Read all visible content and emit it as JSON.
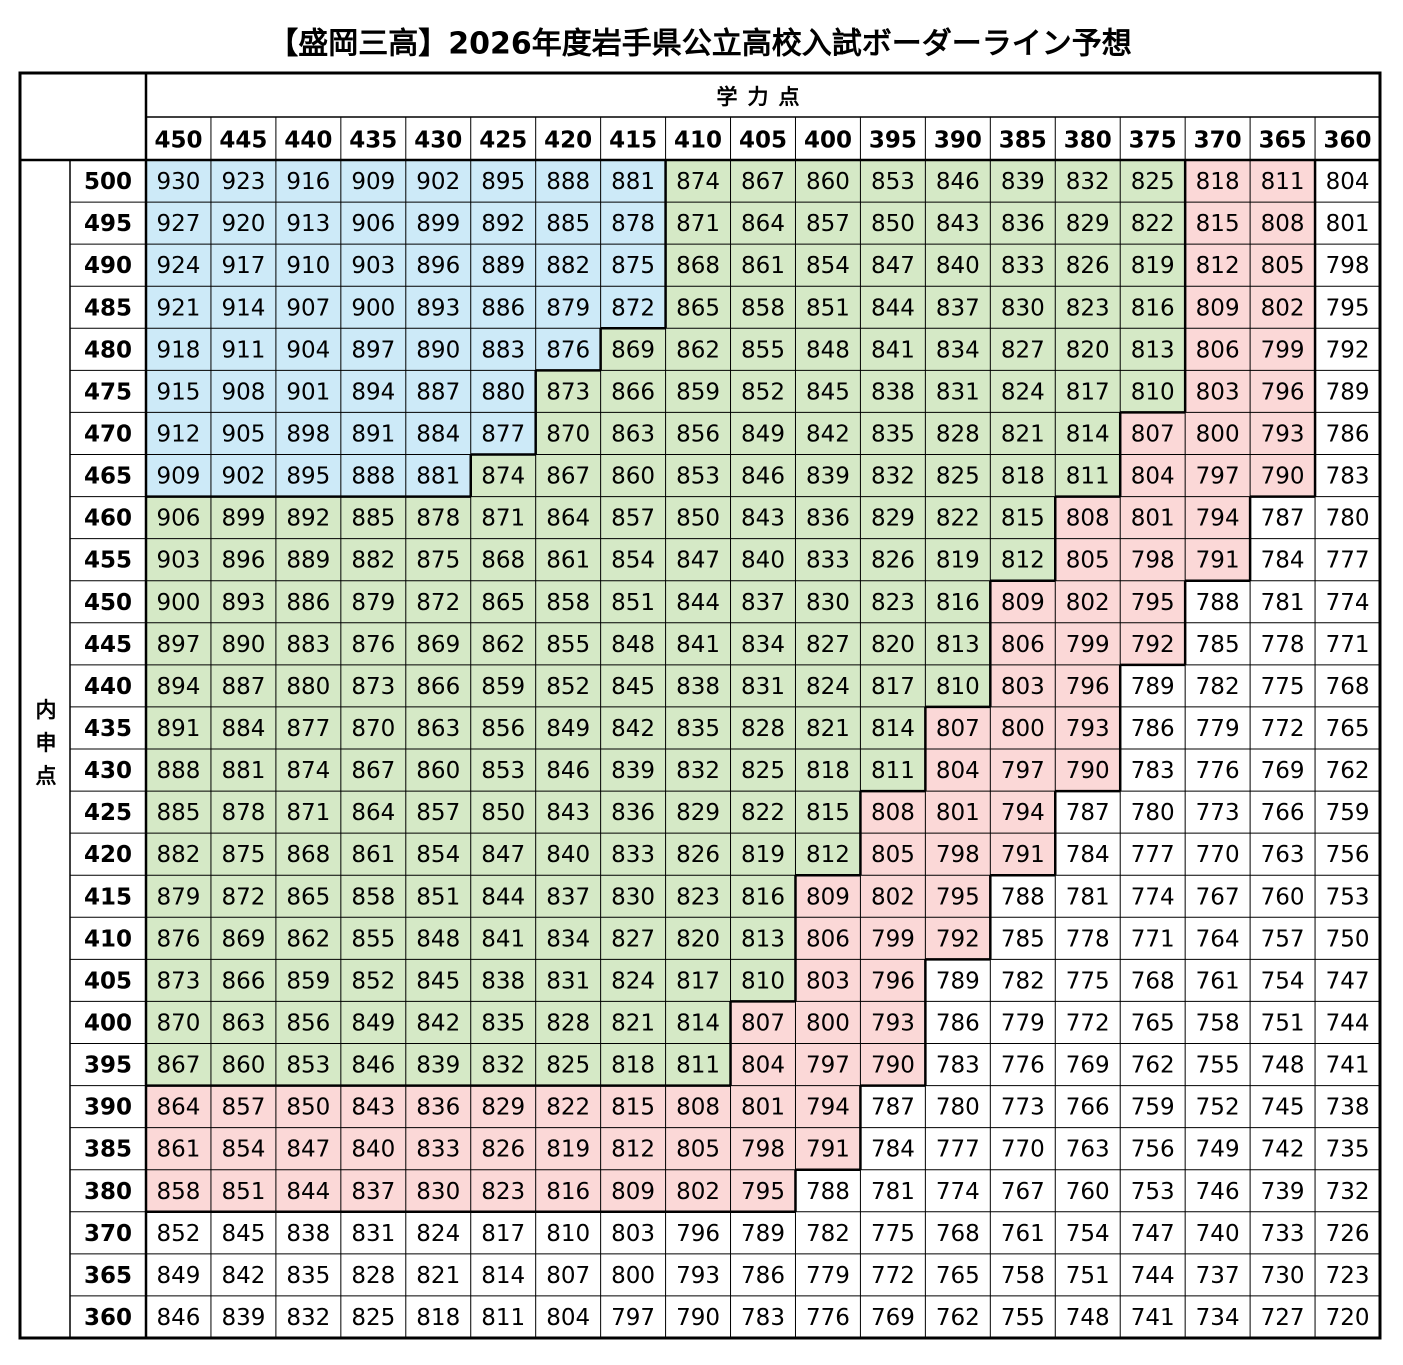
{
  "title": "【盛岡三高】2026年度岩手県公立高校入試ボーダーライン予想",
  "table": {
    "column_group_label": "学力点",
    "row_group_label": "内申点",
    "zone_colors": [
      "#cdeaf8",
      "#d5e9c6",
      "#fbd8d7"
    ],
    "columns": [
      450,
      445,
      440,
      435,
      430,
      425,
      420,
      415,
      410,
      405,
      400,
      395,
      390,
      385,
      380,
      375,
      370,
      365,
      360
    ],
    "rows": [
      {
        "label": 500,
        "zone_ends": [
          8,
          16,
          18
        ],
        "cells": [
          930,
          923,
          916,
          909,
          902,
          895,
          888,
          881,
          874,
          867,
          860,
          853,
          846,
          839,
          832,
          825,
          818,
          811,
          804
        ]
      },
      {
        "label": 495,
        "zone_ends": [
          8,
          16,
          18
        ],
        "cells": [
          927,
          920,
          913,
          906,
          899,
          892,
          885,
          878,
          871,
          864,
          857,
          850,
          843,
          836,
          829,
          822,
          815,
          808,
          801
        ]
      },
      {
        "label": 490,
        "zone_ends": [
          8,
          16,
          18
        ],
        "cells": [
          924,
          917,
          910,
          903,
          896,
          889,
          882,
          875,
          868,
          861,
          854,
          847,
          840,
          833,
          826,
          819,
          812,
          805,
          798
        ]
      },
      {
        "label": 485,
        "zone_ends": [
          8,
          16,
          18
        ],
        "cells": [
          921,
          914,
          907,
          900,
          893,
          886,
          879,
          872,
          865,
          858,
          851,
          844,
          837,
          830,
          823,
          816,
          809,
          802,
          795
        ]
      },
      {
        "label": 480,
        "zone_ends": [
          7,
          16,
          18
        ],
        "cells": [
          918,
          911,
          904,
          897,
          890,
          883,
          876,
          869,
          862,
          855,
          848,
          841,
          834,
          827,
          820,
          813,
          806,
          799,
          792
        ]
      },
      {
        "label": 475,
        "zone_ends": [
          6,
          16,
          18
        ],
        "cells": [
          915,
          908,
          901,
          894,
          887,
          880,
          873,
          866,
          859,
          852,
          845,
          838,
          831,
          824,
          817,
          810,
          803,
          796,
          789
        ]
      },
      {
        "label": 470,
        "zone_ends": [
          6,
          15,
          18
        ],
        "cells": [
          912,
          905,
          898,
          891,
          884,
          877,
          870,
          863,
          856,
          849,
          842,
          835,
          828,
          821,
          814,
          807,
          800,
          793,
          786
        ]
      },
      {
        "label": 465,
        "zone_ends": [
          5,
          15,
          18
        ],
        "cells": [
          909,
          902,
          895,
          888,
          881,
          874,
          867,
          860,
          853,
          846,
          839,
          832,
          825,
          818,
          811,
          804,
          797,
          790,
          783
        ]
      },
      {
        "label": 460,
        "zone_ends": [
          0,
          14,
          17
        ],
        "cells": [
          906,
          899,
          892,
          885,
          878,
          871,
          864,
          857,
          850,
          843,
          836,
          829,
          822,
          815,
          808,
          801,
          794,
          787,
          780
        ]
      },
      {
        "label": 455,
        "zone_ends": [
          0,
          14,
          17
        ],
        "cells": [
          903,
          896,
          889,
          882,
          875,
          868,
          861,
          854,
          847,
          840,
          833,
          826,
          819,
          812,
          805,
          798,
          791,
          784,
          777
        ]
      },
      {
        "label": 450,
        "zone_ends": [
          0,
          13,
          16
        ],
        "cells": [
          900,
          893,
          886,
          879,
          872,
          865,
          858,
          851,
          844,
          837,
          830,
          823,
          816,
          809,
          802,
          795,
          788,
          781,
          774
        ]
      },
      {
        "label": 445,
        "zone_ends": [
          0,
          13,
          16
        ],
        "cells": [
          897,
          890,
          883,
          876,
          869,
          862,
          855,
          848,
          841,
          834,
          827,
          820,
          813,
          806,
          799,
          792,
          785,
          778,
          771
        ]
      },
      {
        "label": 440,
        "zone_ends": [
          0,
          13,
          15
        ],
        "cells": [
          894,
          887,
          880,
          873,
          866,
          859,
          852,
          845,
          838,
          831,
          824,
          817,
          810,
          803,
          796,
          789,
          782,
          775,
          768
        ]
      },
      {
        "label": 435,
        "zone_ends": [
          0,
          12,
          15
        ],
        "cells": [
          891,
          884,
          877,
          870,
          863,
          856,
          849,
          842,
          835,
          828,
          821,
          814,
          807,
          800,
          793,
          786,
          779,
          772,
          765
        ]
      },
      {
        "label": 430,
        "zone_ends": [
          0,
          12,
          15
        ],
        "cells": [
          888,
          881,
          874,
          867,
          860,
          853,
          846,
          839,
          832,
          825,
          818,
          811,
          804,
          797,
          790,
          783,
          776,
          769,
          762
        ]
      },
      {
        "label": 425,
        "zone_ends": [
          0,
          11,
          14
        ],
        "cells": [
          885,
          878,
          871,
          864,
          857,
          850,
          843,
          836,
          829,
          822,
          815,
          808,
          801,
          794,
          787,
          780,
          773,
          766,
          759
        ]
      },
      {
        "label": 420,
        "zone_ends": [
          0,
          11,
          14
        ],
        "cells": [
          882,
          875,
          868,
          861,
          854,
          847,
          840,
          833,
          826,
          819,
          812,
          805,
          798,
          791,
          784,
          777,
          770,
          763,
          756
        ]
      },
      {
        "label": 415,
        "zone_ends": [
          0,
          10,
          13
        ],
        "cells": [
          879,
          872,
          865,
          858,
          851,
          844,
          837,
          830,
          823,
          816,
          809,
          802,
          795,
          788,
          781,
          774,
          767,
          760,
          753
        ]
      },
      {
        "label": 410,
        "zone_ends": [
          0,
          10,
          13
        ],
        "cells": [
          876,
          869,
          862,
          855,
          848,
          841,
          834,
          827,
          820,
          813,
          806,
          799,
          792,
          785,
          778,
          771,
          764,
          757,
          750
        ]
      },
      {
        "label": 405,
        "zone_ends": [
          0,
          10,
          12
        ],
        "cells": [
          873,
          866,
          859,
          852,
          845,
          838,
          831,
          824,
          817,
          810,
          803,
          796,
          789,
          782,
          775,
          768,
          761,
          754,
          747
        ]
      },
      {
        "label": 400,
        "zone_ends": [
          0,
          9,
          12
        ],
        "cells": [
          870,
          863,
          856,
          849,
          842,
          835,
          828,
          821,
          814,
          807,
          800,
          793,
          786,
          779,
          772,
          765,
          758,
          751,
          744
        ]
      },
      {
        "label": 395,
        "zone_ends": [
          0,
          9,
          12
        ],
        "cells": [
          867,
          860,
          853,
          846,
          839,
          832,
          825,
          818,
          811,
          804,
          797,
          790,
          783,
          776,
          769,
          762,
          755,
          748,
          741
        ]
      },
      {
        "label": 390,
        "zone_ends": [
          0,
          0,
          11
        ],
        "cells": [
          864,
          857,
          850,
          843,
          836,
          829,
          822,
          815,
          808,
          801,
          794,
          787,
          780,
          773,
          766,
          759,
          752,
          745,
          738
        ]
      },
      {
        "label": 385,
        "zone_ends": [
          0,
          0,
          11
        ],
        "cells": [
          861,
          854,
          847,
          840,
          833,
          826,
          819,
          812,
          805,
          798,
          791,
          784,
          777,
          770,
          763,
          756,
          749,
          742,
          735
        ]
      },
      {
        "label": 380,
        "zone_ends": [
          0,
          0,
          10
        ],
        "cells": [
          858,
          851,
          844,
          837,
          830,
          823,
          816,
          809,
          802,
          795,
          788,
          781,
          774,
          767,
          760,
          753,
          746,
          739,
          732
        ]
      },
      {
        "label": 370,
        "zone_ends": [
          0,
          0,
          0
        ],
        "cells": [
          852,
          845,
          838,
          831,
          824,
          817,
          810,
          803,
          796,
          789,
          782,
          775,
          768,
          761,
          754,
          747,
          740,
          733,
          726
        ]
      },
      {
        "label": 365,
        "zone_ends": [
          0,
          0,
          0
        ],
        "cells": [
          849,
          842,
          835,
          828,
          821,
          814,
          807,
          800,
          793,
          786,
          779,
          772,
          765,
          758,
          751,
          744,
          737,
          730,
          723
        ]
      },
      {
        "label": 360,
        "zone_ends": [
          0,
          0,
          0
        ],
        "cells": [
          846,
          839,
          832,
          825,
          818,
          811,
          804,
          797,
          790,
          783,
          776,
          769,
          762,
          755,
          748,
          741,
          734,
          727,
          720
        ]
      }
    ]
  }
}
